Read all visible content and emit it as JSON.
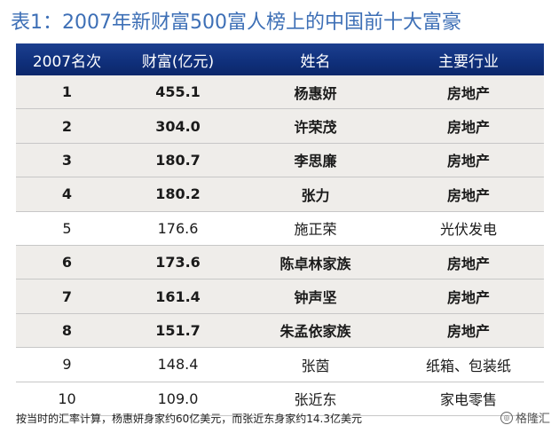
{
  "title": "表1：2007年新财富500富人榜上的中国前十大富豪",
  "table": {
    "headers": [
      "2007名次",
      "财富(亿元)",
      "姓名",
      "主要行业"
    ],
    "rows": [
      {
        "rank": "1",
        "wealth": "455.1",
        "name": "杨惠妍",
        "industry": "房地产",
        "bold": true,
        "shaded": true
      },
      {
        "rank": "2",
        "wealth": "304.0",
        "name": "许荣茂",
        "industry": "房地产",
        "bold": true,
        "shaded": true
      },
      {
        "rank": "3",
        "wealth": "180.7",
        "name": "李思廉",
        "industry": "房地产",
        "bold": true,
        "shaded": true
      },
      {
        "rank": "4",
        "wealth": "180.2",
        "name": "张力",
        "industry": "房地产",
        "bold": true,
        "shaded": true
      },
      {
        "rank": "5",
        "wealth": "176.6",
        "name": "施正荣",
        "industry": "光伏发电",
        "bold": false,
        "shaded": false
      },
      {
        "rank": "6",
        "wealth": "173.6",
        "name": "陈卓林家族",
        "industry": "房地产",
        "bold": true,
        "shaded": true
      },
      {
        "rank": "7",
        "wealth": "161.4",
        "name": "钟声坚",
        "industry": "房地产",
        "bold": true,
        "shaded": true
      },
      {
        "rank": "8",
        "wealth": "151.7",
        "name": "朱孟依家族",
        "industry": "房地产",
        "bold": true,
        "shaded": true
      },
      {
        "rank": "9",
        "wealth": "148.4",
        "name": "张茵",
        "industry": "纸箱、包装纸",
        "bold": false,
        "shaded": false
      },
      {
        "rank": "10",
        "wealth": "109.0",
        "name": "张近东",
        "industry": "家电零售",
        "bold": false,
        "shaded": false
      }
    ]
  },
  "footer": "按当时的汇率计算，杨惠妍身家约60亿美元，而张近东身家约14.3亿美元",
  "watermark": "格隆汇",
  "colors": {
    "title": "#3d6fb6",
    "header_bg": "#0f2f7a",
    "shaded_row": "#efedea"
  }
}
